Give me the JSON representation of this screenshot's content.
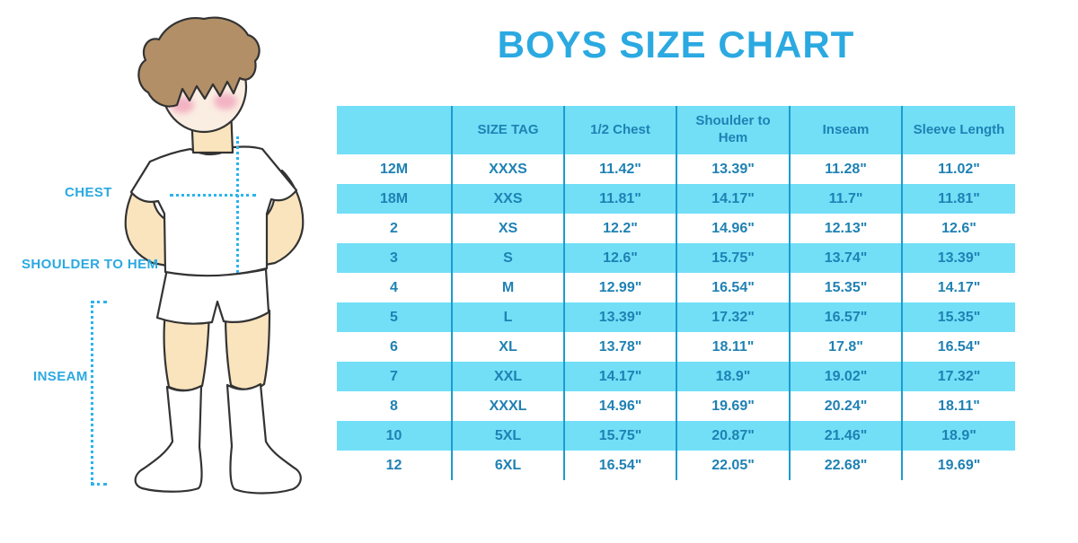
{
  "title": "BOYS SIZE CHART",
  "colors": {
    "accent_blue": "#2BA9E1",
    "table_text": "#1F81B3",
    "row_blue": "#72DFF7",
    "border_blue": "#1B9CD2",
    "dotted_line": "#2BB3EC"
  },
  "illustration": {
    "figure": "faceless boy in white t-shirt, shorts and knee socks with measurement guides",
    "labels": {
      "chest": "CHEST",
      "shoulder_to_hem": "SHOULDER TO HEM",
      "inseam": "INSEAM"
    },
    "colors": {
      "skin": "#FAE4BD",
      "face": "#FAEDE2",
      "cheek": "#F2A8BE",
      "hair": "#B28F66",
      "garment": "#FFFFFF"
    }
  },
  "table": {
    "columns": [
      "",
      "SIZE TAG",
      "1/2 Chest",
      "Shoulder to Hem",
      "Inseam",
      "Sleeve Length"
    ],
    "rows": [
      [
        "12M",
        "XXXS",
        "11.42\"",
        "13.39\"",
        "11.28\"",
        "11.02\""
      ],
      [
        "18M",
        "XXS",
        "11.81\"",
        "14.17\"",
        "11.7\"",
        "11.81\""
      ],
      [
        "2",
        "XS",
        "12.2\"",
        "14.96\"",
        "12.13\"",
        "12.6\""
      ],
      [
        "3",
        "S",
        "12.6\"",
        "15.75\"",
        "13.74\"",
        "13.39\""
      ],
      [
        "4",
        "M",
        "12.99\"",
        "16.54\"",
        "15.35\"",
        "14.17\""
      ],
      [
        "5",
        "L",
        "13.39\"",
        "17.32\"",
        "16.57\"",
        "15.35\""
      ],
      [
        "6",
        "XL",
        "13.78\"",
        "18.11\"",
        "17.8\"",
        "16.54\""
      ],
      [
        "7",
        "XXL",
        "14.17\"",
        "18.9\"",
        "19.02\"",
        "17.32\""
      ],
      [
        "8",
        "XXXL",
        "14.96\"",
        "19.69\"",
        "20.24\"",
        "18.11\""
      ],
      [
        "10",
        "5XL",
        "15.75\"",
        "20.87\"",
        "21.46\"",
        "18.9\""
      ],
      [
        "12",
        "6XL",
        "16.54\"",
        "22.05\"",
        "22.68\"",
        "19.69\""
      ]
    ]
  }
}
